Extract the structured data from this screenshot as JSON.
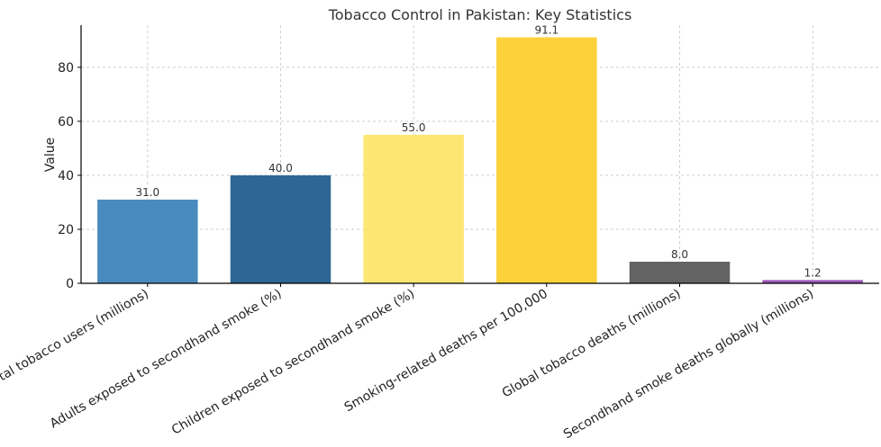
{
  "chart_data": {
    "type": "bar",
    "title": "Tobacco Control in Pakistan: Key Statistics",
    "xlabel": "",
    "ylabel": "Value",
    "ylim": [
      0,
      95.6
    ],
    "yticks": [
      0,
      20,
      40,
      60,
      80
    ],
    "grid": true,
    "categories": [
      "Total tobacco users (millions)",
      "Adults exposed to secondhand smoke (%)",
      "Children exposed to secondhand smoke (%)",
      "Smoking-related deaths per 100,000",
      "Global tobacco deaths (millions)",
      "Secondhand smoke deaths globally (millions)"
    ],
    "values": [
      31.0,
      40.0,
      55.0,
      91.1,
      8.0,
      1.2
    ],
    "data_labels": [
      "31.0",
      "40.0",
      "55.0",
      "91.1",
      "8.0",
      "1.2"
    ],
    "colors": [
      "#4a8bbf",
      "#2e6694",
      "#fde672",
      "#fdd13a",
      "#636363",
      "#9a57b8"
    ]
  }
}
